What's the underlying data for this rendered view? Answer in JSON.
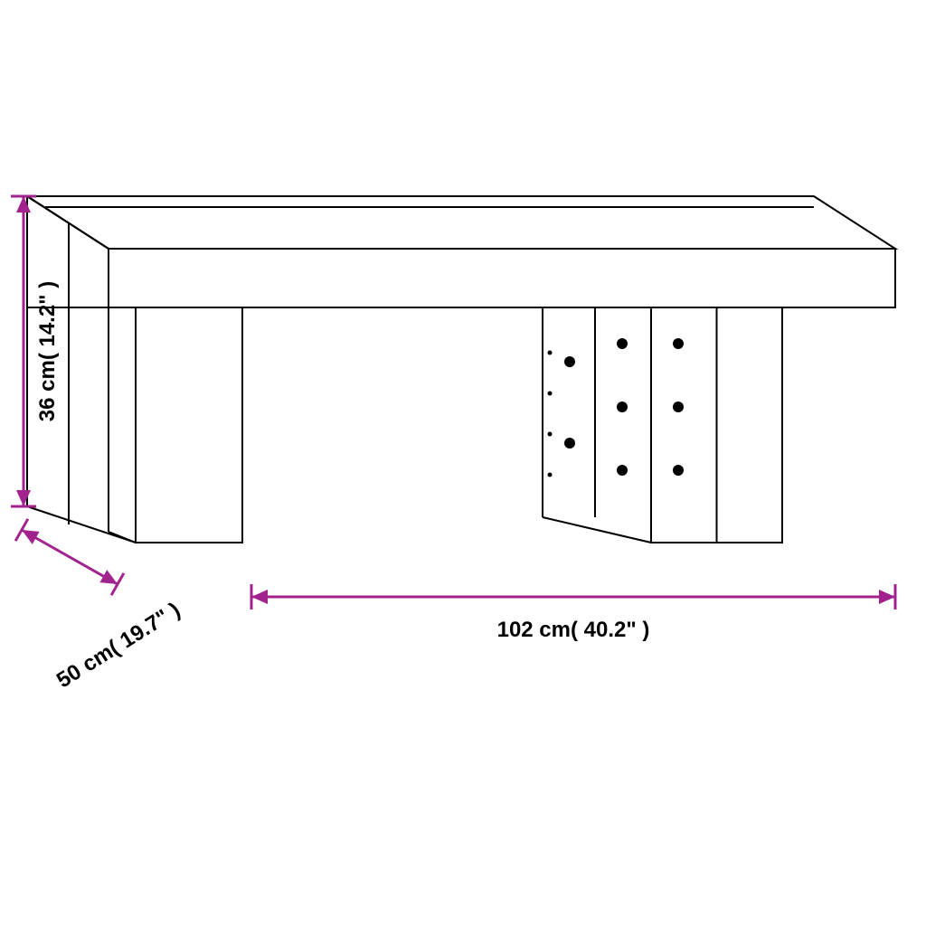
{
  "diagram": {
    "type": "technical-drawing",
    "background_color": "#ffffff",
    "line_color": "#000000",
    "line_width": 2,
    "dimension_color": "#a3238e",
    "dimension_line_width": 3,
    "label_fontsize": 24,
    "label_fontweight": 600,
    "dimensions": {
      "height": {
        "cm": 36,
        "in": 14.2,
        "label": "36 cm( 14.2\" )"
      },
      "depth": {
        "cm": 50,
        "in": 19.7,
        "label": "50 cm( 19.7\" )"
      },
      "width": {
        "cm": 102,
        "in": 40.2,
        "label": "102 cm( 40.2\" )"
      }
    },
    "arrows": {
      "head_len": 18,
      "head_w": 8
    },
    "holes": {
      "large_radius": 6,
      "small_radius": 2.5
    }
  }
}
